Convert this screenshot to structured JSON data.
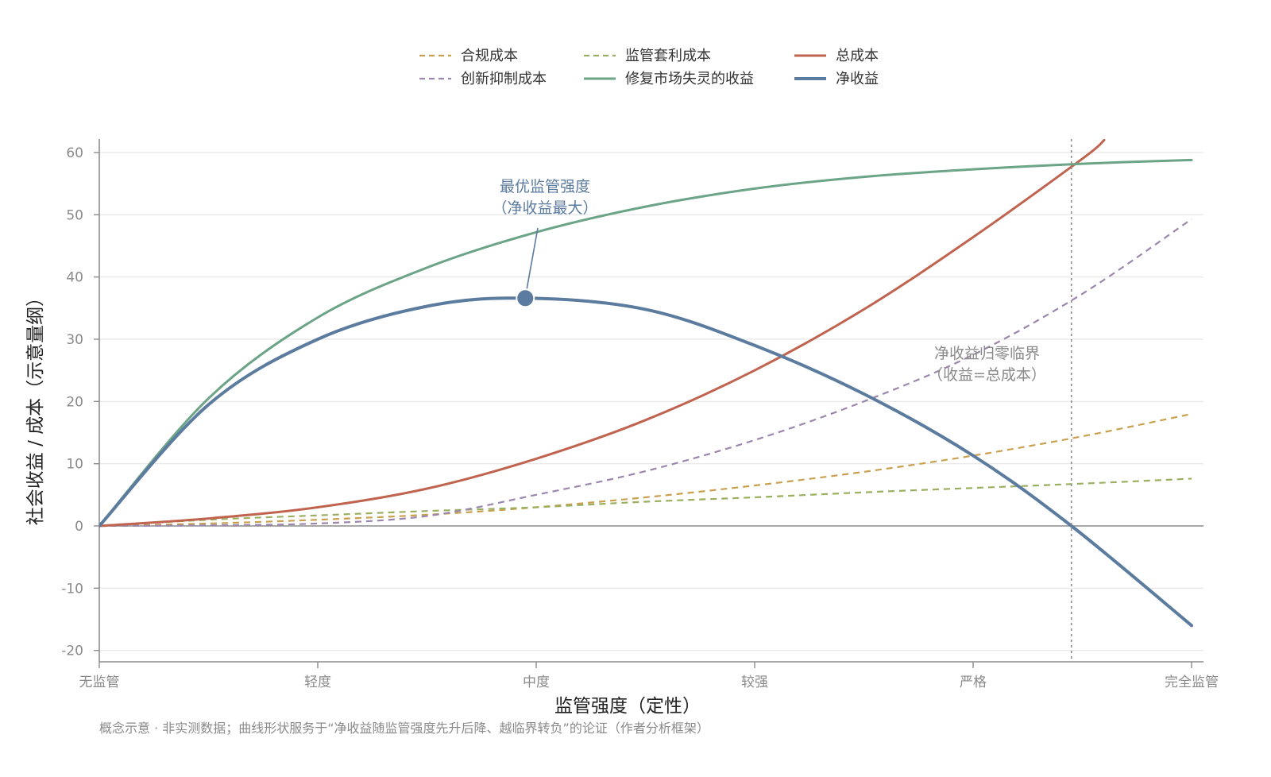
{
  "chart_data": {
    "type": "line",
    "xlabel": "监管强度（定性）",
    "ylabel": "社会收益 / 成本（示意量纲）",
    "x_categories": [
      "无监管",
      "轻度",
      "中度",
      "较强",
      "严格",
      "完全监管"
    ],
    "x_range": [
      0,
      5
    ],
    "ylim": [
      -22,
      62
    ],
    "yticks": [
      60,
      50,
      40,
      30,
      20,
      10,
      0,
      -10,
      -20
    ],
    "grid": "horizontal",
    "legend_position": "top-center",
    "series": [
      {
        "name": "合规成本",
        "color": "#c9a04e",
        "style": "dashed",
        "points": [
          [
            0,
            0
          ],
          [
            0.5,
            0.4
          ],
          [
            1,
            1.0
          ],
          [
            1.5,
            1.8
          ],
          [
            2,
            3.0
          ],
          [
            2.5,
            4.6
          ],
          [
            3,
            6.5
          ],
          [
            3.5,
            8.7
          ],
          [
            4,
            11.3
          ],
          [
            4.5,
            14.4
          ],
          [
            5,
            18.0
          ]
        ]
      },
      {
        "name": "监管套利成本",
        "color": "#9aaf5f",
        "style": "dashed",
        "points": [
          [
            0,
            0
          ],
          [
            0.5,
            1.0
          ],
          [
            1,
            1.7
          ],
          [
            1.5,
            2.4
          ],
          [
            2,
            3.0
          ],
          [
            2.5,
            3.9
          ],
          [
            3,
            4.6
          ],
          [
            3.5,
            5.4
          ],
          [
            4,
            6.1
          ],
          [
            4.5,
            6.8
          ],
          [
            5,
            7.6
          ]
        ]
      },
      {
        "name": "总成本",
        "color": "#c0634f",
        "style": "solid",
        "points": [
          [
            0,
            0
          ],
          [
            0.5,
            1.2
          ],
          [
            1,
            3.0
          ],
          [
            1.5,
            6.0
          ],
          [
            2,
            10.8
          ],
          [
            2.5,
            17.0
          ],
          [
            3,
            25.0
          ],
          [
            3.5,
            34.8
          ],
          [
            4,
            46.4
          ],
          [
            4.5,
            59.0
          ],
          [
            4.6,
            62.0
          ]
        ]
      },
      {
        "name": "创新抑制成本",
        "color": "#9b86ad",
        "style": "dashed",
        "points": [
          [
            0,
            0
          ],
          [
            0.5,
            0.1
          ],
          [
            1,
            0.4
          ],
          [
            1.5,
            1.6
          ],
          [
            2,
            5.0
          ],
          [
            2.5,
            8.8
          ],
          [
            3,
            13.8
          ],
          [
            3.5,
            20.0
          ],
          [
            4,
            27.5
          ],
          [
            4.5,
            37.3
          ],
          [
            5,
            49.3
          ]
        ]
      },
      {
        "name": "修复市场失灵的收益",
        "color": "#6ba486",
        "style": "solid",
        "points": [
          [
            0,
            0
          ],
          [
            0.5,
            20.5
          ],
          [
            1,
            33.5
          ],
          [
            1.5,
            41.5
          ],
          [
            2,
            47.2
          ],
          [
            2.5,
            51.3
          ],
          [
            3,
            54.2
          ],
          [
            3.5,
            56.1
          ],
          [
            4,
            57.3
          ],
          [
            4.5,
            58.2
          ],
          [
            5,
            58.8
          ]
        ]
      },
      {
        "name": "净收益",
        "color": "#5b7b9f",
        "style": "solid",
        "points": [
          [
            0,
            0
          ],
          [
            0.5,
            19.5
          ],
          [
            1,
            30.0
          ],
          [
            1.5,
            35.3
          ],
          [
            1.95,
            36.6
          ],
          [
            2.5,
            34.8
          ],
          [
            3,
            29.0
          ],
          [
            3.5,
            21.2
          ],
          [
            4,
            11.3
          ],
          [
            4.45,
            0
          ],
          [
            5,
            -16.0
          ]
        ]
      }
    ],
    "annotations": [
      {
        "text_line1": "最优监管强度",
        "text_line2": "（净收益最大）",
        "x": 1.95,
        "y": 36.6,
        "color": "#5b7b9f"
      },
      {
        "text_line1": "净收益归零临界",
        "text_line2": "（收益=总成本）",
        "x": 4.45,
        "y": 0,
        "color": "#8a8a8a"
      }
    ]
  },
  "footnote": "概念示意 · 非实测数据；曲线形状服务于“净收益随监管强度先升后降、越临界转负”的论证（作者分析框架）"
}
